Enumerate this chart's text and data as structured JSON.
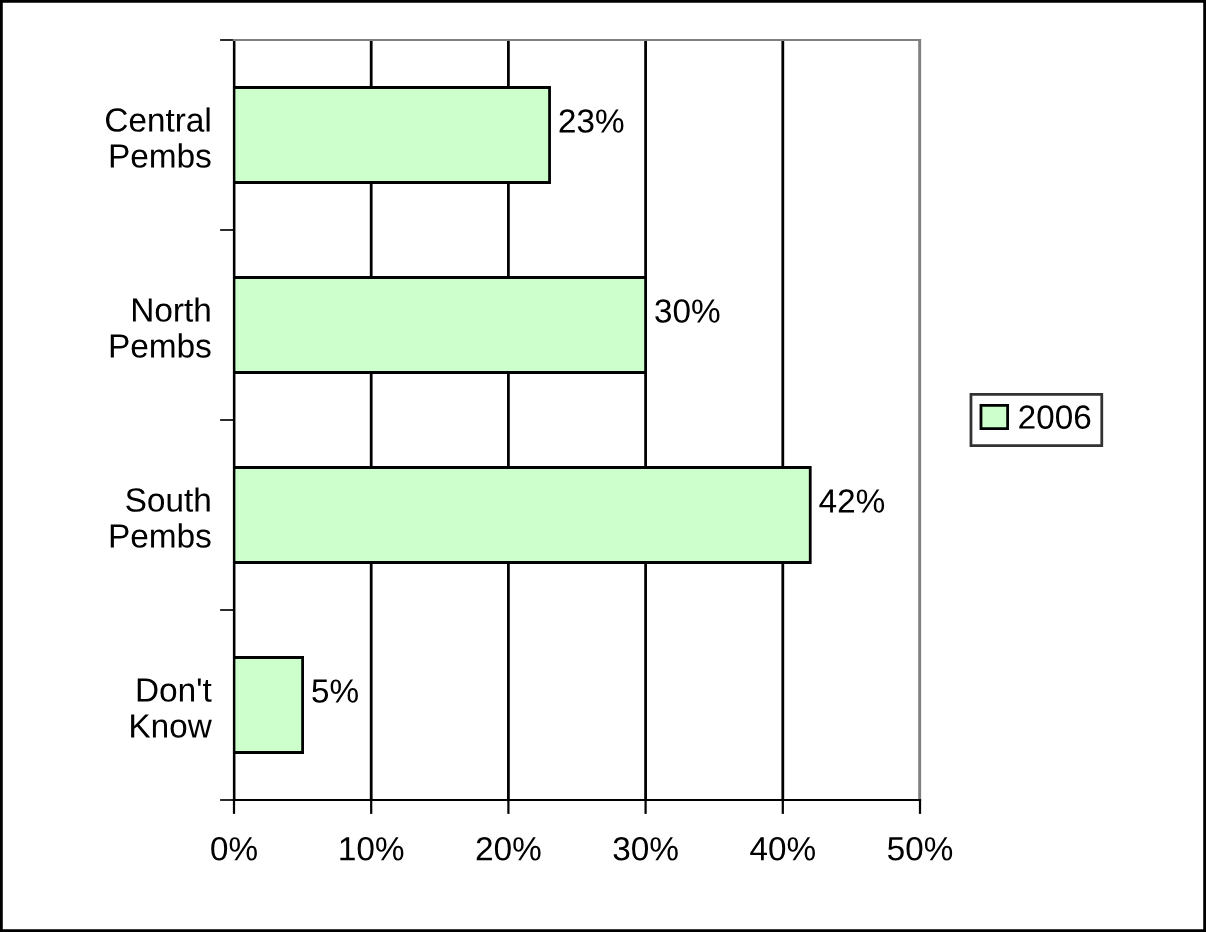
{
  "chart_data": {
    "type": "bar",
    "orientation": "horizontal",
    "categories": [
      "Central\nPembs",
      "North\nPembs",
      "South\nPembs",
      "Don't\nKnow"
    ],
    "series": [
      {
        "name": "2006",
        "color": "#ccffcc",
        "values": [
          23,
          30,
          42,
          5
        ],
        "value_labels": [
          "23%",
          "30%",
          "42%",
          "5%"
        ]
      }
    ],
    "xlim": [
      0,
      50
    ],
    "xticks": [
      {
        "value": 0,
        "label": "0%"
      },
      {
        "value": 10,
        "label": "10%"
      },
      {
        "value": 20,
        "label": "20%"
      },
      {
        "value": 30,
        "label": "30%"
      },
      {
        "value": 40,
        "label": "40%"
      },
      {
        "value": 50,
        "label": "50%"
      }
    ],
    "grid": "x",
    "legend": "right"
  }
}
